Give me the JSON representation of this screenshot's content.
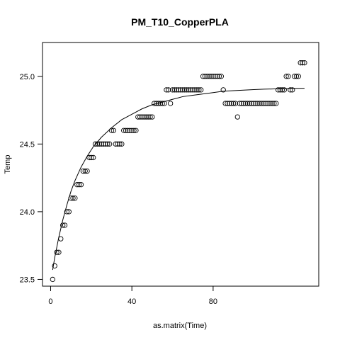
{
  "chart_data": {
    "type": "scatter",
    "title": "PM_T10_CopperPLA",
    "xlabel": "as.matrix(Time)",
    "ylabel": "Temp",
    "xlim": [
      -4,
      132
    ],
    "ylim": [
      23.45,
      25.25
    ],
    "x_ticks": [
      0,
      40,
      80
    ],
    "y_ticks": [
      23.5,
      24.0,
      24.5,
      25.0
    ],
    "x_tick_labels": [
      "0",
      "40",
      "80"
    ],
    "y_tick_labels": [
      "23.5",
      "24.0",
      "24.5",
      "25.0"
    ],
    "grid": false,
    "legend": "none",
    "point_style": "open-circle",
    "series": [
      {
        "x": [
          1,
          2,
          3,
          4,
          5,
          6,
          7,
          8,
          9,
          10,
          11,
          12,
          13,
          14,
          15,
          16,
          17,
          18,
          19,
          20,
          21,
          22,
          23,
          24,
          25,
          26,
          27,
          28,
          29,
          30,
          31,
          32,
          33,
          34,
          35,
          36,
          37,
          38,
          39,
          40,
          41,
          42,
          43,
          44,
          45,
          46,
          47,
          48,
          49,
          50,
          51,
          52,
          53,
          54,
          55,
          56,
          57,
          58,
          59,
          60,
          61,
          62,
          63,
          64,
          65,
          66,
          67,
          68,
          69,
          70,
          71,
          72,
          73,
          74,
          75,
          76,
          77,
          78,
          79,
          80,
          81,
          82,
          83,
          84,
          85,
          86,
          87,
          88,
          89,
          90,
          91,
          92,
          93,
          94,
          95,
          96,
          97,
          98,
          99,
          100,
          101,
          102,
          103,
          104,
          105,
          106,
          107,
          108,
          109,
          110,
          111,
          112,
          113,
          114,
          115,
          116,
          117,
          118,
          119,
          120,
          121,
          122,
          123,
          124,
          125
        ],
        "y": [
          23.5,
          23.6,
          23.7,
          23.7,
          23.8,
          23.9,
          23.9,
          24.0,
          24.0,
          24.1,
          24.1,
          24.1,
          24.2,
          24.2,
          24.2,
          24.3,
          24.3,
          24.3,
          24.4,
          24.4,
          24.4,
          24.5,
          24.5,
          24.5,
          24.5,
          24.5,
          24.5,
          24.5,
          24.5,
          24.6,
          24.6,
          24.5,
          24.5,
          24.5,
          24.5,
          24.6,
          24.6,
          24.6,
          24.6,
          24.6,
          24.6,
          24.6,
          24.7,
          24.7,
          24.7,
          24.7,
          24.7,
          24.7,
          24.7,
          24.7,
          24.8,
          24.8,
          24.8,
          24.8,
          24.8,
          24.8,
          24.9,
          24.9,
          24.8,
          24.9,
          24.9,
          24.9,
          24.9,
          24.9,
          24.9,
          24.9,
          24.9,
          24.9,
          24.9,
          24.9,
          24.9,
          24.9,
          24.9,
          24.9,
          25.0,
          25.0,
          25.0,
          25.0,
          25.0,
          25.0,
          25.0,
          25.0,
          25.0,
          25.0,
          24.9,
          24.8,
          24.8,
          24.8,
          24.8,
          24.8,
          24.8,
          24.7,
          24.8,
          24.8,
          24.8,
          24.8,
          24.8,
          24.8,
          24.8,
          24.8,
          24.8,
          24.8,
          24.8,
          24.8,
          24.8,
          24.8,
          24.8,
          24.8,
          24.8,
          24.8,
          24.8,
          24.9,
          24.9,
          24.9,
          24.9,
          25.0,
          25.0,
          24.9,
          24.9,
          25.0,
          25.0,
          25.0,
          25.1,
          25.1,
          25.1
        ]
      }
    ],
    "fit_curve": {
      "type": "line",
      "x": [
        1,
        2,
        4,
        6,
        8,
        10,
        12,
        15,
        18,
        21,
        25,
        30,
        35,
        40,
        45,
        50,
        55,
        60,
        65,
        70,
        75,
        80,
        85,
        90,
        95,
        100,
        105,
        110,
        115,
        120,
        125
      ],
      "y": [
        23.57,
        23.66,
        23.81,
        23.94,
        24.05,
        24.15,
        24.23,
        24.33,
        24.41,
        24.48,
        24.55,
        24.62,
        24.68,
        24.72,
        24.76,
        24.79,
        24.81,
        24.83,
        24.85,
        24.86,
        24.87,
        24.88,
        24.89,
        24.894,
        24.898,
        24.902,
        24.905,
        24.907,
        24.909,
        24.911,
        24.912
      ]
    }
  }
}
